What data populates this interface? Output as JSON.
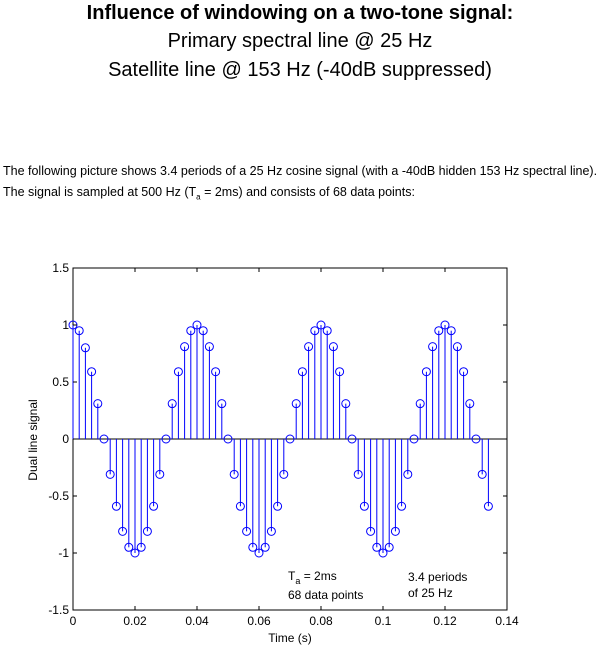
{
  "header": {
    "title_line1": "Influence of windowing on a two-tone signal:",
    "title_line2": "Primary spectral line @ 25 Hz",
    "title_line3": "Satellite line @ 153 Hz (-40dB suppressed)"
  },
  "description": {
    "part1": "The following picture shows 3.4 periods of a 25 Hz cosine signal (with a -40dB hidden 153 Hz spectral line). The signal is sampled at 500 Hz (T",
    "sub": "a",
    "part2": " = 2ms) and consists of 68 data points:"
  },
  "chart_data": {
    "type": "stem",
    "xlabel": "Time (s)",
    "ylabel": "Dual line signal",
    "xlim": [
      0,
      0.14
    ],
    "ylim": [
      -1.5,
      1.5
    ],
    "xticks": [
      0,
      0.02,
      0.04,
      0.06,
      0.08,
      0.1,
      0.12,
      0.14
    ],
    "yticks": [
      -1.5,
      -1,
      -0.5,
      0,
      0.5,
      1,
      1.5
    ],
    "x_tick_labels": [
      "0",
      "0.02",
      "0.04",
      "0.06",
      "0.08",
      "0.1",
      "0.12",
      "0.14"
    ],
    "y_tick_labels": [
      "-1.5",
      "-1",
      "-0.5",
      "0",
      "0.5",
      "1",
      "1.5"
    ],
    "series_color": "#0000ff",
    "x": [
      0,
      0.002,
      0.004,
      0.006,
      0.008,
      0.01,
      0.012,
      0.014,
      0.016,
      0.018,
      0.02,
      0.022,
      0.024,
      0.026,
      0.028,
      0.03,
      0.032,
      0.034,
      0.036,
      0.038,
      0.04,
      0.042,
      0.044,
      0.046,
      0.048,
      0.05,
      0.052,
      0.054,
      0.056,
      0.058,
      0.06,
      0.062,
      0.064,
      0.066,
      0.068,
      0.07,
      0.072,
      0.074,
      0.076,
      0.078,
      0.08,
      0.082,
      0.084,
      0.086,
      0.088,
      0.09,
      0.092,
      0.094,
      0.096,
      0.098,
      0.1,
      0.102,
      0.104,
      0.106,
      0.108,
      0.11,
      0.112,
      0.114,
      0.116,
      0.118,
      0.12,
      0.122,
      0.124,
      0.126,
      0.128,
      0.13,
      0.132,
      0.134
    ],
    "values": [
      1.0,
      0.95,
      0.8,
      0.59,
      0.31,
      0.0,
      -0.31,
      -0.59,
      -0.81,
      -0.95,
      -1.0,
      -0.95,
      -0.81,
      -0.59,
      -0.31,
      0.0,
      0.31,
      0.59,
      0.81,
      0.95,
      1.0,
      0.95,
      0.81,
      0.59,
      0.31,
      0.0,
      -0.31,
      -0.59,
      -0.81,
      -0.95,
      -1.0,
      -0.95,
      -0.81,
      -0.59,
      -0.31,
      0.0,
      0.31,
      0.59,
      0.81,
      0.95,
      1.0,
      0.95,
      0.81,
      0.59,
      0.31,
      0.0,
      -0.31,
      -0.59,
      -0.81,
      -0.95,
      -1.0,
      -0.95,
      -0.81,
      -0.59,
      -0.31,
      0.0,
      0.31,
      0.59,
      0.81,
      0.95,
      1.0,
      0.95,
      0.81,
      0.59,
      0.31,
      0.0,
      -0.31,
      -0.59
    ],
    "annotations": {
      "ta_prefix": "T",
      "ta_sub": "a",
      "ta_suffix": " = 2ms",
      "points": "68 data points",
      "periods_line1": "3.4 periods",
      "periods_line2": "of 25 Hz"
    }
  }
}
